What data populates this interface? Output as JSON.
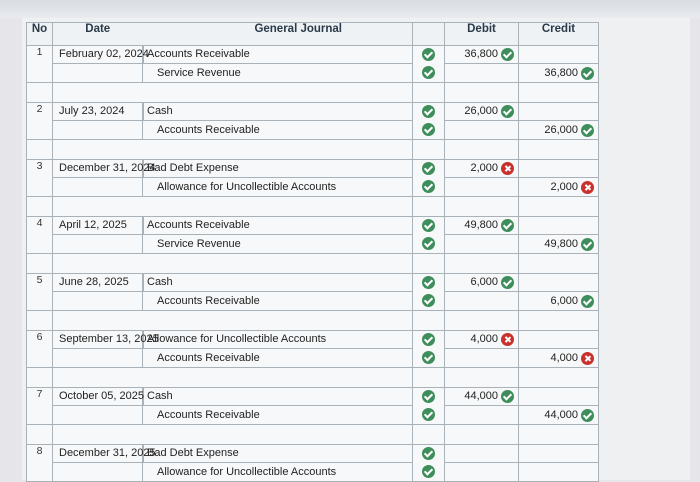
{
  "header": {
    "no": "No",
    "date": "Date",
    "general_journal": "General Journal",
    "debit": "Debit",
    "credit": "Credit"
  },
  "entries": [
    {
      "no": "1",
      "date": "February 02, 2024",
      "debit_account": "Accounts Receivable",
      "credit_account": "Service Revenue",
      "debit": "36,800",
      "credit": "36,800",
      "debit_status": "correct",
      "credit_status": "correct"
    },
    {
      "no": "2",
      "date": "July 23, 2024",
      "debit_account": "Cash",
      "credit_account": "Accounts Receivable",
      "debit": "26,000",
      "credit": "26,000",
      "debit_status": "correct",
      "credit_status": "correct"
    },
    {
      "no": "3",
      "date": "December 31, 2024",
      "debit_account": "Bad Debt Expense",
      "credit_account": "Allowance for Uncollectible Accounts",
      "debit": "2,000",
      "credit": "2,000",
      "debit_status": "incorrect",
      "credit_status": "incorrect"
    },
    {
      "no": "4",
      "date": "April 12, 2025",
      "debit_account": "Accounts Receivable",
      "credit_account": "Service Revenue",
      "debit": "49,800",
      "credit": "49,800",
      "debit_status": "correct",
      "credit_status": "correct"
    },
    {
      "no": "5",
      "date": "June 28, 2025",
      "debit_account": "Cash",
      "credit_account": "Accounts Receivable",
      "debit": "6,000",
      "credit": "6,000",
      "debit_status": "correct",
      "credit_status": "correct"
    },
    {
      "no": "6",
      "date": "September 13, 2025",
      "debit_account": "Allowance for Uncollectible Accounts",
      "credit_account": "Accounts Receivable",
      "debit": "4,000",
      "credit": "4,000",
      "debit_status": "incorrect",
      "credit_status": "incorrect"
    },
    {
      "no": "7",
      "date": "October 05, 2025",
      "debit_account": "Cash",
      "credit_account": "Accounts Receivable",
      "debit": "44,000",
      "credit": "44,000",
      "debit_status": "correct",
      "credit_status": "correct"
    },
    {
      "no": "8",
      "date": "December 31, 2025",
      "debit_account": "Bad Debt Expense",
      "credit_account": "Allowance for Uncollectible Accounts",
      "debit": "",
      "credit": "",
      "debit_status": "none",
      "credit_status": "none"
    }
  ],
  "icons": {
    "correct": "check-circle-icon",
    "incorrect": "x-circle-icon"
  },
  "colors": {
    "correct": "#3e8e5c",
    "incorrect": "#c8312c"
  }
}
